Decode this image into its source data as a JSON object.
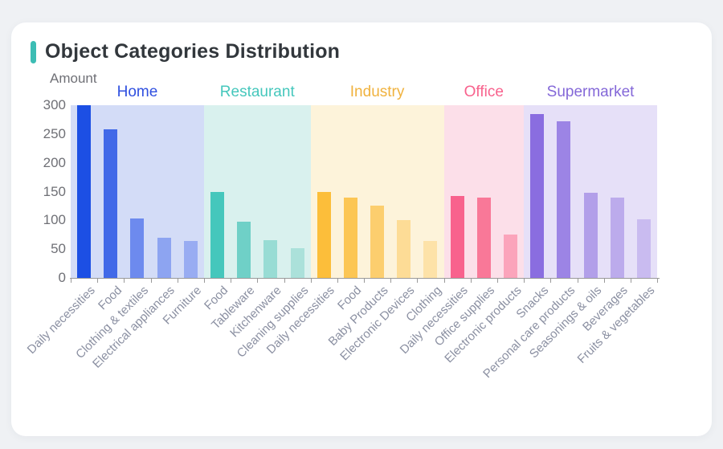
{
  "theme": {
    "page_bg": "#eff1f4",
    "card_bg": "#ffffff",
    "accent": "#3cbdb4",
    "title_color": "#32373c",
    "axis_color": "#999999",
    "y_tick_color": "#6f7076",
    "x_label_color": "#8b90a2"
  },
  "card": {
    "title": "Object Categories Distribution"
  },
  "chart_data": {
    "type": "bar",
    "title": "Object Categories Distribution",
    "xlabel": "",
    "ylabel": "Amount",
    "ylim": [
      0,
      300
    ],
    "yticks": [
      0,
      50,
      100,
      150,
      200,
      250,
      300
    ],
    "grid": false,
    "legend_position": "none",
    "group_headers_position": "above-plot",
    "groups": [
      {
        "name": "Home",
        "label_color": "#3050e0",
        "panel_color": "#d3dcf7",
        "bars": [
          {
            "label": "Daily necessities",
            "value": 300,
            "color": "#1c4fe4"
          },
          {
            "label": "Food",
            "value": 258,
            "color": "#4169e8"
          },
          {
            "label": "Clothing & textiles",
            "value": 103,
            "color": "#6d8aee"
          },
          {
            "label": "Electrical appliances",
            "value": 70,
            "color": "#8da4f1"
          },
          {
            "label": "Furniture",
            "value": 64,
            "color": "#98acf2"
          }
        ]
      },
      {
        "name": "Restaurant",
        "label_color": "#45c7bc",
        "panel_color": "#d9f1ee",
        "bars": [
          {
            "label": "Food",
            "value": 149,
            "color": "#45c7bc"
          },
          {
            "label": "Tableware",
            "value": 98,
            "color": "#6fd0c7"
          },
          {
            "label": "Kitchenware",
            "value": 65,
            "color": "#98dcd4"
          },
          {
            "label": "Cleaning supplies",
            "value": 51,
            "color": "#abe1da"
          }
        ]
      },
      {
        "name": "Industry",
        "label_color": "#f0b23e",
        "panel_color": "#fdf3da",
        "bars": [
          {
            "label": "Daily necessities",
            "value": 150,
            "color": "#fcbe3a"
          },
          {
            "label": "Food",
            "value": 139,
            "color": "#fcc654"
          },
          {
            "label": "Baby Products",
            "value": 126,
            "color": "#fcce6e"
          },
          {
            "label": "Electronic Devices",
            "value": 100,
            "color": "#fddc96"
          },
          {
            "label": "Clothing",
            "value": 64,
            "color": "#fde2a8"
          }
        ]
      },
      {
        "name": "Office",
        "label_color": "#f8628d",
        "panel_color": "#fcdfe9",
        "bars": [
          {
            "label": "Daily necessities",
            "value": 143,
            "color": "#f8628d"
          },
          {
            "label": "Office supplies",
            "value": 139,
            "color": "#f97898"
          },
          {
            "label": "Electronic products",
            "value": 75,
            "color": "#fba4bb"
          }
        ]
      },
      {
        "name": "Supermarket",
        "label_color": "#8468d8",
        "panel_color": "#e6e0f8",
        "bars": [
          {
            "label": "Snacks",
            "value": 285,
            "color": "#8a6de0"
          },
          {
            "label": "Personal care products",
            "value": 272,
            "color": "#9c84e5"
          },
          {
            "label": "Seasonings & oils",
            "value": 148,
            "color": "#b29fe9"
          },
          {
            "label": "Beverages",
            "value": 140,
            "color": "#bcabec"
          },
          {
            "label": "Fruits & vegetables",
            "value": 102,
            "color": "#c9bbf0"
          }
        ]
      }
    ]
  }
}
